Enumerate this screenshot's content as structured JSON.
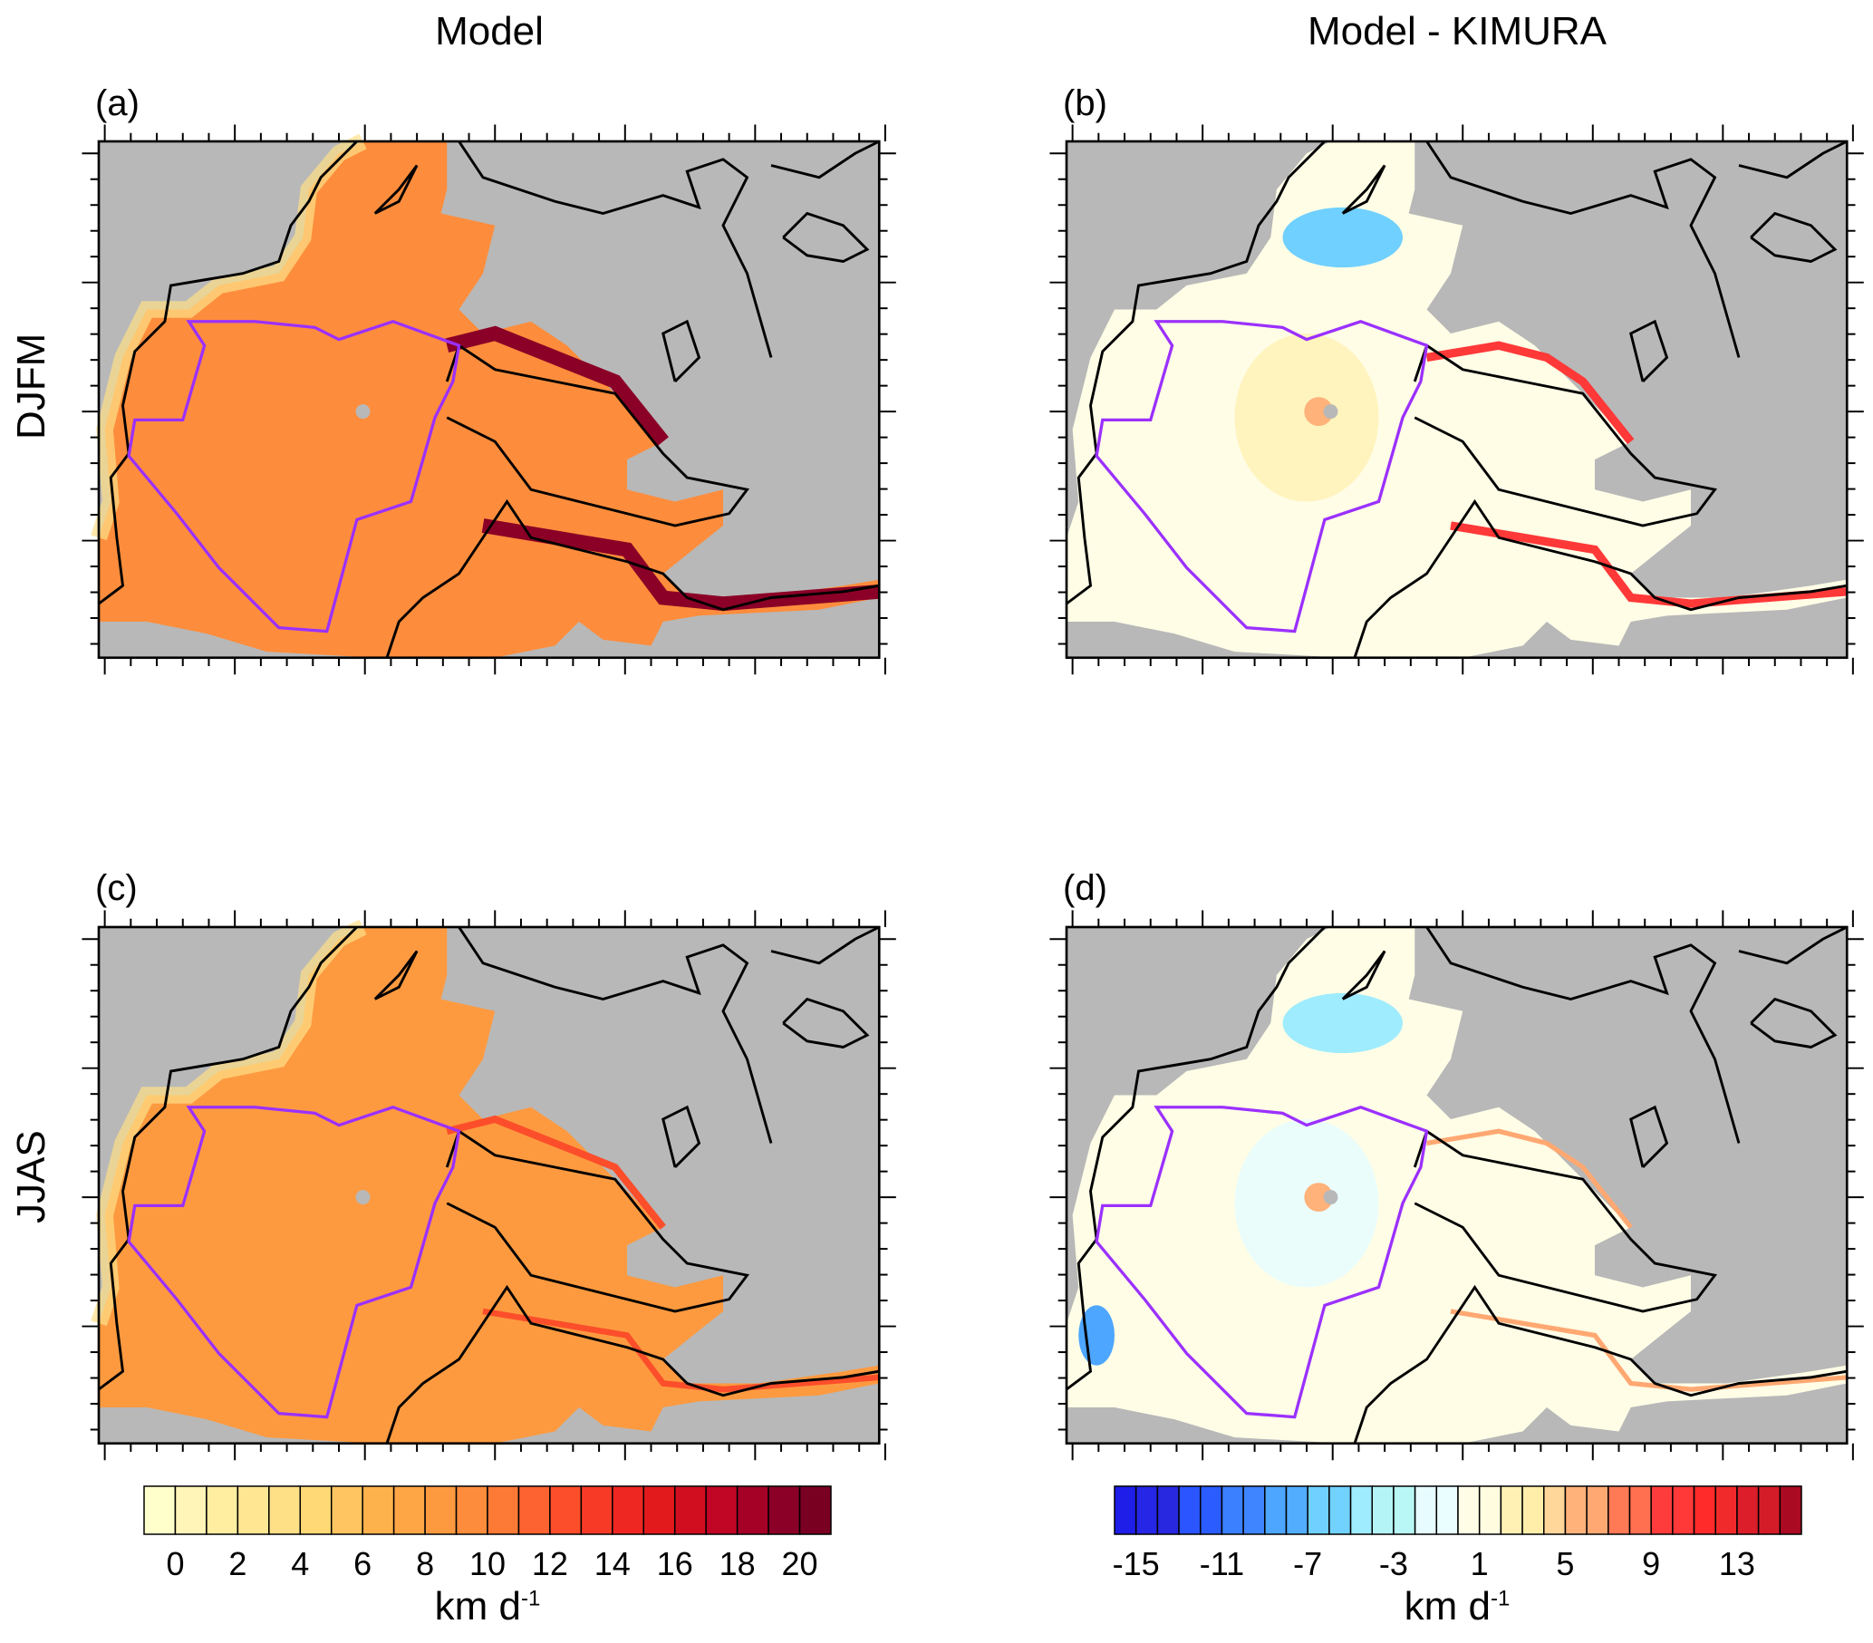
{
  "columns": [
    "Model",
    "Model - KIMURA"
  ],
  "rows": [
    "DJFM",
    "JJAS"
  ],
  "panels": [
    {
      "label": "(a)",
      "season": "DJFM",
      "field": "Model"
    },
    {
      "label": "(b)",
      "season": "DJFM",
      "field": "Model - KIMURA"
    },
    {
      "label": "(c)",
      "season": "JJAS",
      "field": "Model"
    },
    {
      "label": "(d)",
      "season": "JJAS",
      "field": "Model - KIMURA"
    }
  ],
  "chart_data": [
    {
      "type": "heatmap",
      "title": "Model",
      "colorbar": {
        "levels": 22,
        "tick_labels": [
          "0",
          "2",
          "4",
          "6",
          "8",
          "10",
          "12",
          "14",
          "16",
          "18",
          "20"
        ],
        "range": [
          -1,
          21
        ],
        "units": "km d",
        "units_exp": "-1",
        "colors": [
          "#ffffcc",
          "#fff5b8",
          "#ffeda0",
          "#fee693",
          "#fee087",
          "#fed976",
          "#fec561",
          "#feb24c",
          "#fea646",
          "#fd9a40",
          "#fd8d3c",
          "#fd7a36",
          "#fc6330",
          "#fc4e2a",
          "#f63a26",
          "#ee2722",
          "#e31a1c",
          "#d10e20",
          "#c00525",
          "#a50026",
          "#8b0026",
          "#7a0022"
        ]
      }
    },
    {
      "type": "heatmap",
      "title": "Model - KIMURA",
      "colorbar": {
        "levels": 32,
        "tick_labels": [
          "-15",
          "-11",
          "-7",
          "-3",
          "1",
          "5",
          "9",
          "13"
        ],
        "range": [
          -16,
          16
        ],
        "units": "km d",
        "units_exp": "-1",
        "colors": [
          "#1e1ee8",
          "#2626e6",
          "#2828e0",
          "#2a55ff",
          "#2b5cff",
          "#3a80ff",
          "#3f85ff",
          "#4da6ff",
          "#52adff",
          "#70d0ff",
          "#72d2ff",
          "#a0ecff",
          "#b4f4f6",
          "#b9f7f7",
          "#e6fcff",
          "#eafdff",
          "#fffde6",
          "#fffce0",
          "#fff1b4",
          "#ffeeaa",
          "#ffd79a",
          "#ffb27a",
          "#ffa872",
          "#ff7a55",
          "#ff7050",
          "#ff3c3c",
          "#ff3838",
          "#ff2a2a",
          "#f02a2a",
          "#dc1e2a",
          "#d41c28",
          "#aa0a22"
        ]
      }
    }
  ],
  "colors": {
    "land": "#b8b8b8",
    "region_outline": "#9b30ff",
    "coast": "#000000"
  }
}
